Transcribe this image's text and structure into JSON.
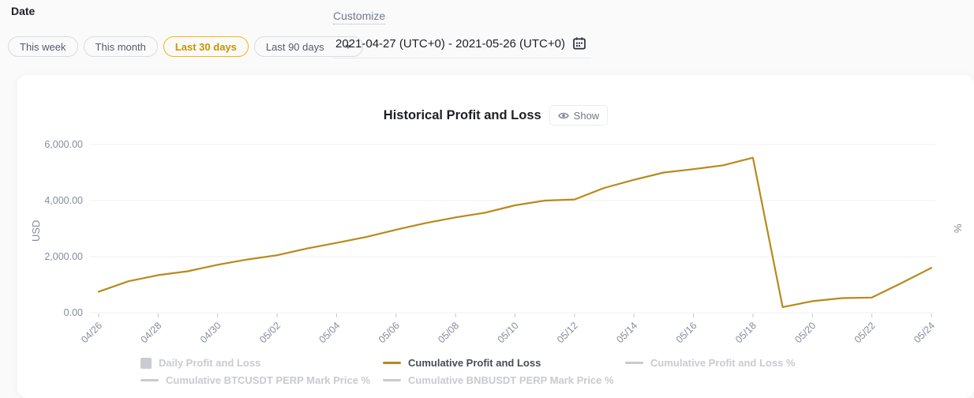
{
  "filters": {
    "label": "Date",
    "pills": [
      {
        "label": "This week",
        "active": false,
        "has_dropdown": false
      },
      {
        "label": "This month",
        "active": false,
        "has_dropdown": false
      },
      {
        "label": "Last 30 days",
        "active": true,
        "has_dropdown": false
      },
      {
        "label": "Last 90 days",
        "active": false,
        "has_dropdown": true
      }
    ],
    "customize_label": "Customize",
    "date_range": "2021-04-27 (UTC+0) - 2021-05-26 (UTC+0)"
  },
  "chart_header": {
    "title": "Historical Profit and Loss",
    "show_button_label": "Show"
  },
  "colors": {
    "accent_gold": "#F0B90B",
    "active_pill_text": "#C99400",
    "line_gold": "#B88A1A",
    "axis_text": "#858D9D",
    "tick_mark": "#C6CBD3",
    "grid": "#F0F1F3",
    "legend_inactive": "#C9CBD0",
    "legend_active": "#474D57",
    "title_text": "#1E2026",
    "muted_text": "#707A8A"
  },
  "chart_data": {
    "type": "line",
    "title": "Historical Profit and Loss",
    "ylabel_left": "USD",
    "ylabel_right": "%",
    "ylim": [
      0,
      6000
    ],
    "grid": true,
    "legend_position": "bottom",
    "x_tick_step": 2,
    "y_ticks": [
      {
        "value": 0,
        "label": "0.00"
      },
      {
        "value": 2000,
        "label": "2,000.00"
      },
      {
        "value": 4000,
        "label": "4,000.00"
      },
      {
        "value": 6000,
        "label": "6,000.00"
      }
    ],
    "x": [
      "04/26",
      "04/27",
      "04/28",
      "04/29",
      "04/30",
      "05/01",
      "05/02",
      "05/03",
      "05/04",
      "05/05",
      "05/06",
      "05/07",
      "05/08",
      "05/09",
      "05/10",
      "05/11",
      "05/12",
      "05/13",
      "05/14",
      "05/15",
      "05/16",
      "05/17",
      "05/18",
      "05/19",
      "05/20",
      "05/21",
      "05/22",
      "05/23",
      "05/24"
    ],
    "series": [
      {
        "name": "Cumulative Profit and Loss",
        "color": "#B88A1A",
        "values": [
          750,
          1120,
          1340,
          1480,
          1710,
          1900,
          2050,
          2290,
          2490,
          2700,
          2960,
          3200,
          3400,
          3570,
          3830,
          4000,
          4040,
          4450,
          4740,
          5000,
          5120,
          5260,
          5530,
          200,
          410,
          520,
          540,
          1060,
          1600
        ]
      }
    ],
    "hidden_series": [
      "Daily Profit and Loss",
      "Cumulative Profit and Loss %",
      "Cumulative BTCUSDT PERP Mark Price %",
      "Cumulative BNBUSDT PERP Mark Price %"
    ]
  },
  "legend": {
    "rows": [
      [
        {
          "label": "Daily Profit and Loss",
          "swatch": "square",
          "active": false,
          "color": "#C9CBD0"
        },
        {
          "label": "Cumulative Profit and Loss",
          "swatch": "line",
          "active": true,
          "color": "#B88A1A"
        },
        {
          "label": "Cumulative Profit and Loss %",
          "swatch": "line",
          "active": false,
          "color": "#C9CBD0"
        }
      ],
      [
        {
          "label": "Cumulative BTCUSDT PERP Mark Price %",
          "swatch": "line",
          "active": false,
          "color": "#C9CBD0"
        },
        {
          "label": "Cumulative BNBUSDT PERP Mark Price %",
          "swatch": "line",
          "active": false,
          "color": "#C9CBD0"
        }
      ]
    ]
  }
}
